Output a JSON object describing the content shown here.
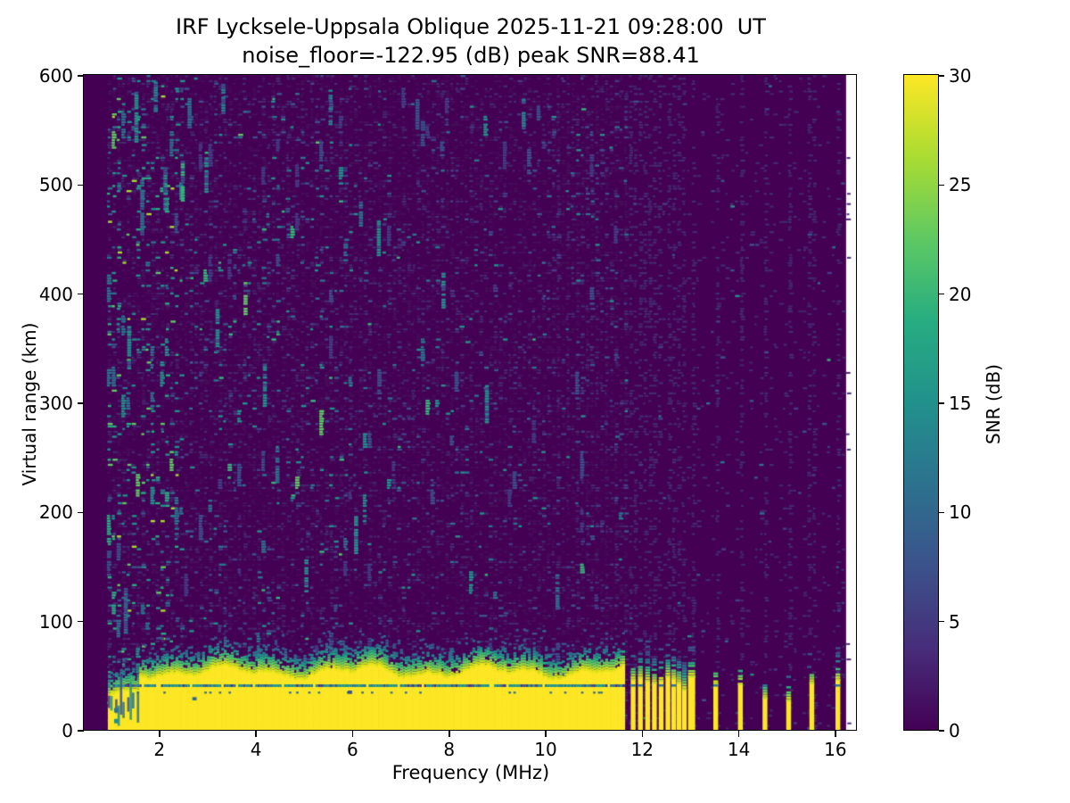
{
  "chart_data": {
    "type": "heatmap",
    "title": "IRF Lycksele-Uppsala Oblique 2025-11-21 09:28:00  UT",
    "subtitle": "noise_floor=-122.95 (dB) peak SNR=88.41",
    "xlabel": "Frequency (MHz)",
    "ylabel": "Virtual range (km)",
    "colorbar_label": "SNR (dB)",
    "colormap": "viridis",
    "xlim": [
      0.45,
      16.44
    ],
    "ylim": [
      0,
      600
    ],
    "x_ticks": [
      2,
      4,
      6,
      8,
      10,
      12,
      14,
      16
    ],
    "y_ticks": [
      0,
      100,
      200,
      300,
      400,
      500,
      600
    ],
    "colorbar_ticks": [
      0,
      5,
      10,
      15,
      20,
      25,
      30
    ],
    "colorbar_range": [
      0,
      30
    ],
    "noise_floor_db": -122.95,
    "peak_snr_db": 88.41,
    "grid": false,
    "legend": "none",
    "colormap_stops": [
      "#440154",
      "#472d7b",
      "#3b528b",
      "#2c728e",
      "#21918c",
      "#27ad81",
      "#5ec962",
      "#aadc32",
      "#fde725"
    ],
    "background_color": "#440154",
    "max_color": "#fde725",
    "mesh_f_start": 0.93,
    "mesh_f_end": 16.24,
    "ground_band": {
      "f_start": 0.95,
      "f_end": 11.64,
      "solid_top_km_base": 53,
      "dark_line_km": 40.5,
      "fringe_colors": [
        "#e2e418",
        "#c2df23",
        "#8bd646",
        "#5ec962",
        "#3fbc73",
        "#27ad81",
        "#21918c",
        "#26828e",
        "#2c728e",
        "#31688e",
        "#365c8d",
        "#3b528b"
      ],
      "fringe_probs": [
        1,
        0.97,
        0.9,
        0.8,
        0.7,
        0.6,
        0.5,
        0.4,
        0.28,
        0.2,
        0.14,
        0.1
      ],
      "dark_line_colors": [
        "#1f948c",
        "#2a788e",
        "#3b528b",
        "#453781"
      ]
    },
    "band_marks": [
      {
        "f": 1.08,
        "k0": 6,
        "k1": 10,
        "c": "#21918c"
      },
      {
        "f": 1.08,
        "k0": 16,
        "k1": 20,
        "c": "#2c728e"
      },
      {
        "f": 2.7,
        "k0": 27,
        "k1": 30,
        "c": "#31688e"
      },
      {
        "f": 5.92,
        "k0": 33,
        "k1": 36,
        "c": "#3b528b"
      }
    ],
    "discrete_stripes": [
      {
        "f": 11.78,
        "top": 47,
        "cap": 70
      },
      {
        "f": 11.93,
        "top": 49,
        "cap": 76
      },
      {
        "f": 12.08,
        "top": 46,
        "cap": 80
      },
      {
        "f": 12.22,
        "top": 44,
        "cap": 72
      },
      {
        "f": 12.36,
        "top": 46,
        "cap": 74
      },
      {
        "f": 12.5,
        "top": 50,
        "cap": 78
      },
      {
        "f": 12.62,
        "top": 48,
        "cap": 72
      },
      {
        "f": 12.73,
        "top": 44,
        "cap": 68
      },
      {
        "f": 12.84,
        "top": 38,
        "cap": 60
      },
      {
        "f": 12.99,
        "top": 50,
        "cap": 80,
        "w": 8
      },
      {
        "f": 13.49,
        "top": 43,
        "cap": 52
      },
      {
        "f": 14.0,
        "top": 43,
        "cap": 60
      },
      {
        "f": 14.51,
        "top": 30,
        "cap": 44
      },
      {
        "f": 15.0,
        "top": 28,
        "cap": 58
      },
      {
        "f": 15.48,
        "top": 44,
        "cap": 53
      },
      {
        "f": 16.02,
        "top": 47,
        "cap": 75
      }
    ],
    "noise_streaks": [
      {
        "f": 1.28,
        "k0": 90,
        "k1": 130,
        "c": "#2c728e"
      },
      {
        "f": 1.35,
        "k0": 330,
        "k1": 370,
        "c": "#21918c"
      },
      {
        "f": 1.5,
        "k0": 540,
        "k1": 585,
        "c": "#21918c"
      },
      {
        "f": 1.62,
        "k0": 455,
        "k1": 505,
        "c": "#2c728e"
      },
      {
        "f": 1.9,
        "k0": 568,
        "k1": 596,
        "c": "#26828e"
      },
      {
        "f": 2.1,
        "k0": 478,
        "k1": 516,
        "c": "#21918c"
      },
      {
        "f": 2.46,
        "k0": 486,
        "k1": 522,
        "c": "#35b779"
      },
      {
        "f": 2.6,
        "k0": 553,
        "k1": 580,
        "c": "#2c728e"
      },
      {
        "f": 2.95,
        "k0": 494,
        "k1": 526,
        "c": "#21918c"
      },
      {
        "f": 3.18,
        "k0": 348,
        "k1": 386,
        "c": "#21918c"
      },
      {
        "f": 3.3,
        "k0": 566,
        "k1": 592,
        "c": "#26828e"
      },
      {
        "f": 3.76,
        "k0": 382,
        "k1": 414,
        "c": "#5ec962"
      },
      {
        "f": 4.16,
        "k0": 298,
        "k1": 336,
        "c": "#21918c"
      },
      {
        "f": 4.42,
        "k0": 228,
        "k1": 262,
        "c": "#2c728e"
      },
      {
        "f": 5.02,
        "k0": 128,
        "k1": 158,
        "c": "#21918c"
      },
      {
        "f": 5.52,
        "k0": 556,
        "k1": 588,
        "c": "#26828e"
      },
      {
        "f": 6.05,
        "k0": 163,
        "k1": 198,
        "c": "#21918c"
      },
      {
        "f": 6.15,
        "k0": 463,
        "k1": 486,
        "c": "#2c728e"
      },
      {
        "f": 6.52,
        "k0": 436,
        "k1": 468,
        "c": "#21918c"
      },
      {
        "f": 7.32,
        "k0": 552,
        "k1": 580,
        "c": "#3b528b"
      },
      {
        "f": 7.86,
        "k0": 388,
        "k1": 420,
        "c": "#21918c"
      },
      {
        "f": 8.76,
        "k0": 283,
        "k1": 316,
        "c": "#21918c"
      },
      {
        "f": 9.52,
        "k0": 552,
        "k1": 580,
        "c": "#26828e"
      },
      {
        "f": 10.22,
        "k0": 112,
        "k1": 144,
        "c": "#2c728e"
      }
    ],
    "noise_palettes": {
      "base_faint": [
        "#470b5c",
        "#4a0f60",
        "#471259"
      ],
      "column_faint": [
        "#452c75",
        "#433272",
        "#46266d"
      ],
      "left": [
        [
          "#3b528b",
          0.2
        ],
        [
          "#2c728e",
          0.2
        ],
        [
          "#21918c",
          0.3
        ],
        [
          "#27ad81",
          0.15
        ],
        [
          "#5ec962",
          0.1
        ],
        [
          "#aadc32",
          0.05
        ]
      ],
      "mid": [
        [
          "#433e85",
          0.3
        ],
        [
          "#3b528b",
          0.27
        ],
        [
          "#2c728e",
          0.2
        ],
        [
          "#21918c",
          0.15
        ],
        [
          "#35b779",
          0.06
        ],
        [
          "#5ec962",
          0.02
        ]
      ],
      "right": [
        [
          "#433e85",
          0.45
        ],
        [
          "#3b528b",
          0.3
        ],
        [
          "#2c728e",
          0.14
        ],
        [
          "#21918c",
          0.09
        ],
        [
          "#35b779",
          0.02
        ]
      ]
    }
  }
}
